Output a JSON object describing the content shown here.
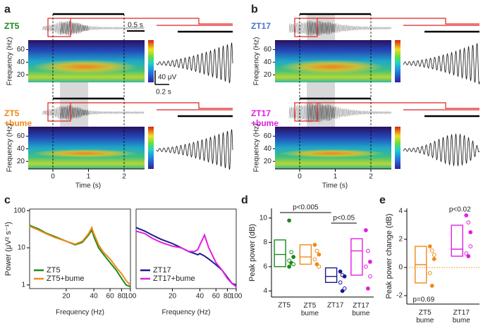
{
  "figure": {
    "panels": [
      {
        "label": "a",
        "top_name": "ZT5",
        "bottom_name": "ZT5",
        "bottom_treatment": "+bume",
        "scale_time": "0.5 s",
        "scale_amp": "40 μV",
        "scale_zoom_time": "0.2 s"
      },
      {
        "label": "b",
        "top_name": "ZT17",
        "bottom_name": "ZT17",
        "bottom_treatment": "+bume"
      }
    ],
    "freq_label": "Frequency (Hz)",
    "freq_ticks": [
      60,
      40,
      20
    ],
    "time_label": "Time (s)",
    "time_ticks": [
      0,
      1,
      2
    ]
  },
  "chart_data": [
    {
      "type": "line",
      "panel_label": "c",
      "ylabel": "Power (μV² s⁻¹)",
      "xlabel": "Frequency (Hz)",
      "xscale": "log",
      "yscale": "log",
      "xlim": [
        8,
        100
      ],
      "ylim": [
        0.8,
        110
      ],
      "xticks": [
        20,
        40,
        60,
        80,
        100
      ],
      "yticks": [
        100,
        10,
        1
      ],
      "legend": "lower left",
      "x": [
        8,
        10,
        12,
        15,
        20,
        25,
        30,
        35,
        38,
        40,
        45,
        50,
        60,
        70,
        80,
        90,
        100
      ],
      "series": [
        {
          "name": "ZT5",
          "color": "#1a8a1a",
          "values": [
            40,
            32,
            25,
            20,
            15,
            12,
            14,
            22,
            30,
            20,
            10,
            7,
            4,
            2.5,
            1.5,
            1,
            0.9
          ]
        },
        {
          "name": "ZT5+bume",
          "color": "#f08a1a",
          "values": [
            38,
            30,
            24,
            19,
            15,
            12.5,
            15,
            24,
            35,
            24,
            12,
            8,
            5,
            3,
            2,
            1.3,
            1
          ]
        }
      ]
    },
    {
      "type": "line",
      "xlabel": "Frequency (Hz)",
      "xscale": "log",
      "yscale": "log",
      "xlim": [
        8,
        100
      ],
      "ylim": [
        0.8,
        110
      ],
      "xticks": [
        20,
        40,
        60,
        80,
        100
      ],
      "legend": "lower left",
      "x": [
        8,
        10,
        12,
        15,
        20,
        25,
        30,
        35,
        38,
        40,
        45,
        50,
        60,
        70,
        80,
        90,
        100
      ],
      "series": [
        {
          "name": "ZT17",
          "color": "#1a1a90",
          "values": [
            35,
            28,
            22,
            17,
            13,
            10,
            8,
            7,
            6.5,
            7,
            6,
            5,
            3.5,
            2.5,
            1.6,
            1.1,
            1
          ]
        },
        {
          "name": "ZT17+bume",
          "color": "#e020e0",
          "values": [
            28,
            24,
            18,
            14,
            11,
            10,
            8,
            8,
            9,
            12,
            22,
            10,
            4,
            2.5,
            1.5,
            1.1,
            0.9
          ]
        }
      ]
    },
    {
      "type": "box",
      "panel_label": "d",
      "ylabel": "Peak power (dB)",
      "categories": [
        "ZT5",
        "ZT5\nbume",
        "ZT17",
        "ZT17\nbume"
      ],
      "ylim": [
        3.5,
        10.8
      ],
      "yticks": [
        4,
        6,
        8,
        10
      ],
      "annotations": [
        "p<0.005",
        "p<0.05"
      ],
      "series": [
        {
          "color": "#1a8a1a",
          "q1": 6.0,
          "median": 7.0,
          "q3": 8.2,
          "points": [
            9.8,
            7.2,
            6.8,
            6.5,
            6.3,
            6.2,
            6.0
          ]
        },
        {
          "color": "#f08a1a",
          "q1": 6.2,
          "median": 6.8,
          "q3": 7.8,
          "points": [
            7.8,
            7.3,
            7.0,
            6.6,
            6.2,
            6.0
          ]
        },
        {
          "color": "#1a1a90",
          "q1": 4.7,
          "median": 5.2,
          "q3": 5.9,
          "points": [
            5.6,
            5.3,
            5.2,
            4.7,
            4.0,
            4.2
          ]
        },
        {
          "color": "#e020e0",
          "q1": 5.3,
          "median": 7.3,
          "q3": 8.3,
          "points": [
            9.0,
            7.3,
            6.4,
            6.0,
            4.2,
            5.2
          ]
        }
      ]
    },
    {
      "type": "box",
      "panel_label": "e",
      "ylabel": "Peak power change (dB)",
      "categories": [
        "ZT5\nbume",
        "ZT17\nbume"
      ],
      "ylim": [
        -2.6,
        4.2
      ],
      "yticks": [
        -2,
        0,
        2,
        4
      ],
      "annotations": [
        "p=0.69",
        "p<0.02"
      ],
      "series": [
        {
          "color": "#f08a1a",
          "q1": -1.1,
          "median": 0.2,
          "q3": 1.5,
          "points": [
            1.5,
            1.2,
            0.6,
            -0.4,
            -1.3,
            0.9
          ]
        },
        {
          "color": "#e020e0",
          "q1": 0.8,
          "median": 1.3,
          "q3": 3.0,
          "points": [
            3.7,
            3.2,
            2.5,
            1.0,
            0.8,
            1.5
          ]
        }
      ]
    }
  ]
}
